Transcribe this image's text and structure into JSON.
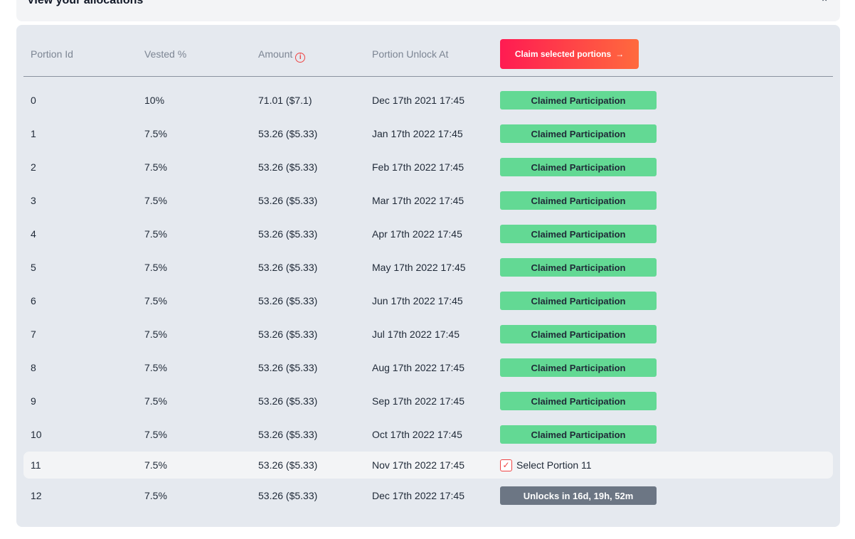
{
  "header": {
    "title": "View your allocations",
    "chevron": "chevron-up-icon"
  },
  "table": {
    "columns": [
      "Portion Id",
      "Vested %",
      "Amount",
      "Portion Unlock At"
    ],
    "claim_button_label": "Claim selected portions",
    "claim_button_icon": "→",
    "rows": [
      {
        "id": "0",
        "vested": "10%",
        "amount": "71.01 ($7.1)",
        "unlock": "Dec 17th 2021 17:45",
        "status": "Claimed Participation"
      },
      {
        "id": "1",
        "vested": "7.5%",
        "amount": "53.26 ($5.33)",
        "unlock": "Jan 17th 2022 17:45",
        "status": "Claimed Participation"
      },
      {
        "id": "2",
        "vested": "7.5%",
        "amount": "53.26 ($5.33)",
        "unlock": "Feb 17th 2022 17:45",
        "status": "Claimed Participation"
      },
      {
        "id": "3",
        "vested": "7.5%",
        "amount": "53.26 ($5.33)",
        "unlock": "Mar 17th 2022 17:45",
        "status": "Claimed Participation"
      },
      {
        "id": "4",
        "vested": "7.5%",
        "amount": "53.26 ($5.33)",
        "unlock": "Apr 17th 2022 17:45",
        "status": "Claimed Participation"
      },
      {
        "id": "5",
        "vested": "7.5%",
        "amount": "53.26 ($5.33)",
        "unlock": "May 17th 2022 17:45",
        "status": "Claimed Participation"
      },
      {
        "id": "6",
        "vested": "7.5%",
        "amount": "53.26 ($5.33)",
        "unlock": "Jun 17th 2022 17:45",
        "status": "Claimed Participation"
      },
      {
        "id": "7",
        "vested": "7.5%",
        "amount": "53.26 ($5.33)",
        "unlock": "Jul 17th 2022 17:45",
        "status": "Claimed Participation"
      },
      {
        "id": "8",
        "vested": "7.5%",
        "amount": "53.26 ($5.33)",
        "unlock": "Aug 17th 2022 17:45",
        "status": "Claimed Participation"
      },
      {
        "id": "9",
        "vested": "7.5%",
        "amount": "53.26 ($5.33)",
        "unlock": "Sep 17th 2022 17:45",
        "status": "Claimed Participation"
      },
      {
        "id": "10",
        "vested": "7.5%",
        "amount": "53.26 ($5.33)",
        "unlock": "Oct 17th 2022 17:45",
        "status": "Claimed Participation"
      },
      {
        "id": "11",
        "vested": "7.5%",
        "amount": "53.26 ($5.33)",
        "unlock": "Nov 17th 2022 17:45",
        "status": "Select Portion 11",
        "selectable": true,
        "checked": true
      },
      {
        "id": "12",
        "vested": "7.5%",
        "amount": "53.26 ($5.33)",
        "unlock": "Dec 17th 2022 17:45",
        "status": "Unlocks in 16d, 19h, 52m",
        "locked": true
      }
    ]
  },
  "colors": {
    "claimed": "#63d994",
    "locked": "#6c7684",
    "accent_start": "#ff1b52",
    "accent_end": "#ff6a3d",
    "panel": "#e5e9ef"
  }
}
